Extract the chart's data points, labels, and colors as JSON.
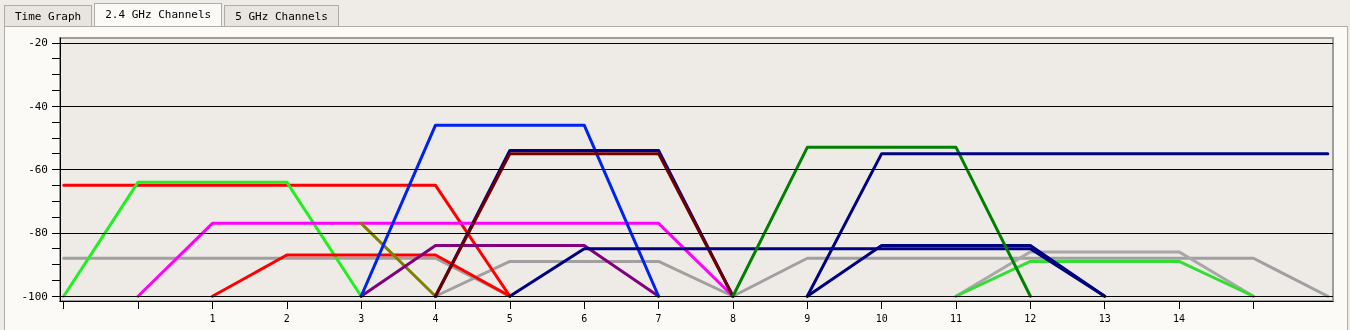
{
  "chart_data": {
    "type": "line",
    "annotations": [
      "Time Graph",
      "2.4 GHz Channels",
      "5 GHz Channels"
    ],
    "xlim": [
      -1.05,
      16.07
    ],
    "xticks": [
      {
        "value": -1,
        "label": null
      },
      {
        "value": 0,
        "label": null
      },
      1,
      2,
      3,
      4,
      5,
      6,
      7,
      8,
      9,
      10,
      11,
      12,
      13,
      14,
      {
        "value": 15,
        "label": null
      }
    ],
    "ylim": [
      -101.5,
      -18.5
    ],
    "yticks": [
      -100,
      {
        "value": -95,
        "label": null
      },
      {
        "value": -90,
        "label": null
      },
      {
        "value": -85,
        "label": null
      },
      -80,
      {
        "value": -75,
        "label": null
      },
      {
        "value": -70,
        "label": null
      },
      {
        "value": -65,
        "label": null
      },
      -60,
      {
        "value": -55,
        "label": null
      },
      {
        "value": -50,
        "label": null
      },
      {
        "value": -45,
        "label": null
      },
      -40,
      {
        "value": -35,
        "label": null
      },
      {
        "value": -30,
        "label": null
      },
      {
        "value": -25,
        "label": null
      },
      -20
    ],
    "grid": "y",
    "marker": "none",
    "line_style": "solid",
    "series": [
      {
        "color": "#a0a0a0",
        "x": [
          -1,
          4,
          5
        ],
        "values": [
          -88,
          -88,
          -100
        ]
      },
      {
        "color": "#a0a0a0",
        "x": [
          4,
          5,
          7,
          8
        ],
        "values": [
          -100,
          -89,
          -89,
          -100
        ]
      },
      {
        "color": "#a0a0a0",
        "x": [
          8,
          9,
          15,
          16
        ],
        "values": [
          -100,
          -88,
          -88,
          -100
        ]
      },
      {
        "color": "#a8a8a8",
        "x": [
          11,
          12,
          14,
          15
        ],
        "values": [
          -100,
          -86,
          -86,
          -100
        ]
      },
      {
        "color": "#33dd33",
        "x": [
          11,
          12,
          14,
          15
        ],
        "values": [
          -100,
          -89,
          -89,
          -100
        ]
      },
      {
        "color": "#ff0000",
        "x": [
          -1,
          4,
          5
        ],
        "values": [
          -65,
          -65,
          -100
        ]
      },
      {
        "color": "#22ee22",
        "x": [
          -1,
          0,
          2,
          3
        ],
        "values": [
          -100,
          -64,
          -64,
          -100
        ]
      },
      {
        "color": "#ff00ff",
        "x": [
          0,
          1,
          7,
          8
        ],
        "values": [
          -100,
          -77,
          -77,
          -100
        ]
      },
      {
        "color": "#ff0000",
        "x": [
          1,
          2,
          4,
          5
        ],
        "values": [
          -100,
          -87,
          -87,
          -100
        ]
      },
      {
        "color": "#808000",
        "x": [
          3,
          4
        ],
        "values": [
          -77,
          -100
        ]
      },
      {
        "color": "#800080",
        "x": [
          3,
          4,
          6,
          7
        ],
        "values": [
          -100,
          -84,
          -84,
          -100
        ]
      },
      {
        "color": "#0022ee",
        "x": [
          3,
          4,
          6,
          7
        ],
        "values": [
          -100,
          -46,
          -46,
          -100
        ]
      },
      {
        "color": "#000080",
        "x": [
          4,
          5,
          7,
          8
        ],
        "values": [
          -100,
          -54,
          -54,
          -100
        ]
      },
      {
        "color": "#700000",
        "x": [
          4,
          5,
          7,
          8
        ],
        "values": [
          -100,
          -55,
          -55,
          -100
        ]
      },
      {
        "color": "#000080",
        "x": [
          5,
          6,
          12,
          13
        ],
        "values": [
          -100,
          -85,
          -85,
          -100
        ]
      },
      {
        "color": "#000080",
        "x": [
          9,
          10,
          12,
          13
        ],
        "values": [
          -100,
          -84,
          -84,
          -100
        ]
      },
      {
        "color": "#008000",
        "x": [
          8,
          9,
          11,
          12
        ],
        "values": [
          -100,
          -53,
          -53,
          -100
        ]
      },
      {
        "color": "#000080",
        "x": [
          9,
          10,
          16
        ],
        "values": [
          -100,
          -55,
          -55
        ]
      }
    ]
  }
}
